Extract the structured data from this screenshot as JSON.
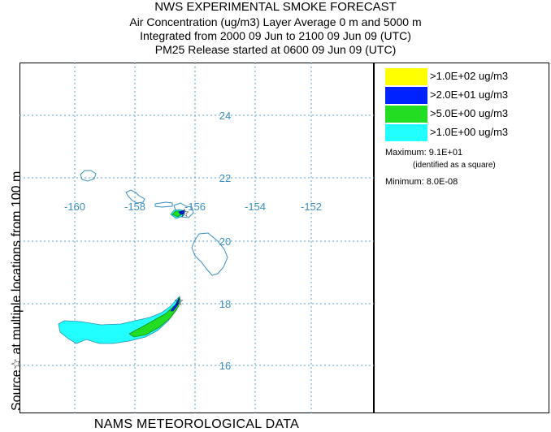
{
  "title": {
    "line1": "NWS EXPERIMENTAL SMOKE FORECAST",
    "line2": "Air Concentration (ug/m3) Layer Average    0 m and  5000 m",
    "line3": "Integrated from 2000 09 Jun to 2100 09 Jun 09 (UTC)",
    "line4": "PM25 Release started at 0600 09 Jun 09 (UTC)"
  },
  "side_label": "Source☆ at multiple locations  from  100 m",
  "footer": "NAMS METEOROLOGICAL DATA",
  "map": {
    "longitude_labels": [
      "-160",
      "-158",
      "-156",
      "-154",
      "-152"
    ],
    "latitude_labels": [
      "24",
      "22",
      "20",
      "18",
      "16"
    ],
    "gridline_color": "#5aa0d0",
    "coastline_color": "#3a8fc0",
    "source_marker_icon": "star-icon"
  },
  "legend": {
    "items": [
      {
        "label": ">1.0E+02 ug/m3",
        "color": "#ffff00"
      },
      {
        "label": ">2.0E+01 ug/m3",
        "color": "#0022ff"
      },
      {
        "label": ">5.0E+00 ug/m3",
        "color": "#22dd22"
      },
      {
        "label": ">1.0E+00 ug/m3",
        "color": "#22ffff"
      }
    ],
    "maximum": "Maximum: 9.1E+01",
    "maximum_note": "(identified as a square)",
    "minimum": "Minimum: 8.0E-08"
  }
}
